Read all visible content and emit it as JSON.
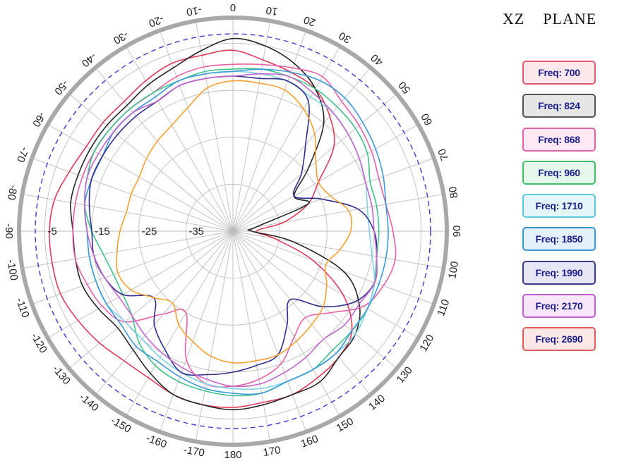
{
  "title": "XZ    PLANE",
  "chart_data": {
    "type": "polar-line",
    "angle_labels": [
      "0",
      "10",
      "20",
      "30",
      "40",
      "50",
      "60",
      "70",
      "80",
      "90",
      "100",
      "110",
      "120",
      "130",
      "140",
      "150",
      "160",
      "170",
      "180",
      "-170",
      "-160",
      "-150",
      "-140",
      "-130",
      "-120",
      "-110",
      "-100",
      "-90",
      "-80",
      "-70",
      "-60",
      "-50",
      "-40",
      "-30",
      "-20",
      "-10"
    ],
    "radial_ticks": [
      -35,
      -25,
      -15,
      -5
    ],
    "radial_range": [
      -45,
      0
    ],
    "reference_circle": -3,
    "series": [
      {
        "name": "Freq: 700",
        "color": "#e23a56",
        "values": [
          -6.5,
          -8,
          -9,
          -10,
          -13,
          -17,
          -24,
          -28,
          -34,
          -40,
          -36,
          -27,
          -18,
          -12,
          -10,
          -9,
          -8,
          -8,
          -7.5,
          -7.5,
          -8,
          -9,
          -9,
          -8,
          -7,
          -6,
          -6,
          -6,
          -6.5,
          -8,
          -9,
          -9,
          -9,
          -8,
          -7,
          -7
        ]
      },
      {
        "name": "Freq: 824",
        "color": "#262626",
        "values": [
          -4,
          -5,
          -7,
          -10,
          -15,
          -24,
          -30,
          -28,
          -40,
          -41,
          -32,
          -20,
          -14,
          -11,
          -10,
          -8,
          -8,
          -7.5,
          -7,
          -7.5,
          -8,
          -10,
          -12,
          -13,
          -12,
          -11,
          -11,
          -11,
          -10,
          -10,
          -10,
          -10,
          -10,
          -9,
          -8,
          -6
        ]
      },
      {
        "name": "Freq: 868",
        "color": "#e660a8",
        "values": [
          -9.5,
          -9,
          -8,
          -7,
          -9,
          -10,
          -11,
          -12,
          -12,
          -11,
          -10,
          -11,
          -13,
          -18,
          -21,
          -19,
          -15,
          -13,
          -12,
          -12,
          -16,
          -25,
          -22,
          -15,
          -13,
          -12,
          -11,
          -11,
          -11,
          -11,
          -11,
          -11,
          -11,
          -11,
          -10,
          -9.5
        ]
      },
      {
        "name": "Freq: 960",
        "color": "#3fc28a",
        "values": [
          -10.5,
          -10,
          -10,
          -10,
          -10.5,
          -11,
          -12,
          -14,
          -14,
          -14,
          -14,
          -13,
          -12,
          -12,
          -12,
          -11,
          -11,
          -10,
          -10,
          -10.5,
          -11,
          -12,
          -14,
          -17,
          -18,
          -18,
          -17,
          -15,
          -13,
          -12,
          -11,
          -11,
          -11,
          -11,
          -11,
          -10.5
        ]
      },
      {
        "name": "Freq: 1710",
        "color": "#7fd2e6",
        "values": [
          -11,
          -11,
          -11,
          -12,
          -12,
          -13,
          -14,
          -15,
          -16,
          -16,
          -15,
          -13,
          -12,
          -11,
          -11,
          -11,
          -11,
          -11,
          -11.5,
          -12,
          -13,
          -14,
          -15,
          -15,
          -14,
          -14,
          -14,
          -14,
          -13,
          -12,
          -12,
          -12,
          -12,
          -12,
          -11,
          -11
        ]
      },
      {
        "name": "Freq: 1850",
        "color": "#3b9ad8",
        "values": [
          -11,
          -10,
          -9,
          -8,
          -8,
          -9,
          -10,
          -11,
          -12,
          -12,
          -12,
          -12,
          -12,
          -12,
          -11,
          -11,
          -11,
          -10,
          -10.5,
          -11,
          -12,
          -13,
          -13,
          -14,
          -14,
          -14,
          -14,
          -14,
          -13,
          -13,
          -13,
          -12,
          -12,
          -12,
          -11,
          -11
        ]
      },
      {
        "name": "Freq: 1990",
        "color": "#2f2f8c",
        "values": [
          -12,
          -12,
          -11,
          -13,
          -21,
          -26,
          -30,
          -25,
          -18,
          -15,
          -14,
          -13,
          -15,
          -20,
          -26,
          -22,
          -17,
          -16,
          -15,
          -14,
          -13,
          -16,
          -19,
          -23,
          -18,
          -16,
          -15,
          -15,
          -14,
          -13,
          -13,
          -13,
          -13,
          -13,
          -12,
          -12
        ]
      },
      {
        "name": "Freq: 2170",
        "color": "#c266cc",
        "values": [
          -12,
          -11,
          -10,
          -11,
          -12,
          -13,
          -14,
          -15,
          -15,
          -15,
          -14,
          -13,
          -14,
          -14,
          -15,
          -14,
          -13,
          -12,
          -12,
          -13,
          -14,
          -15,
          -16,
          -17,
          -17,
          -16,
          -15,
          -14,
          -13,
          -12,
          -12,
          -12,
          -12,
          -13,
          -12,
          -12
        ]
      },
      {
        "name": "Freq: 2690",
        "color": "#f5a030",
        "values": [
          -13,
          -13,
          -13,
          -15,
          -18,
          -22,
          -24,
          -23,
          -20,
          -20,
          -22,
          -24,
          -22,
          -20,
          -19,
          -18,
          -17,
          -17,
          -17,
          -18,
          -20,
          -22,
          -25,
          -23,
          -20,
          -19,
          -20,
          -21,
          -22,
          -22,
          -22,
          -21,
          -20,
          -19,
          -17,
          -14
        ]
      }
    ]
  },
  "legend_style": [
    {
      "border": "#e05b6d",
      "bg": "#fde9ec"
    },
    {
      "border": "#555555",
      "bg": "#e6e6e6"
    },
    {
      "border": "#e063a6",
      "bg": "#fde8f3"
    },
    {
      "border": "#3fbf68",
      "bg": "#e6f7ec"
    },
    {
      "border": "#5cc7da",
      "bg": "#e4f6fa"
    },
    {
      "border": "#3a96d4",
      "bg": "#e5f1fa"
    },
    {
      "border": "#3a3a8f",
      "bg": "#e6e6f4"
    },
    {
      "border": "#c25fce",
      "bg": "#f7e6f9"
    },
    {
      "border": "#e05b5b",
      "bg": "#fde8e8"
    }
  ]
}
